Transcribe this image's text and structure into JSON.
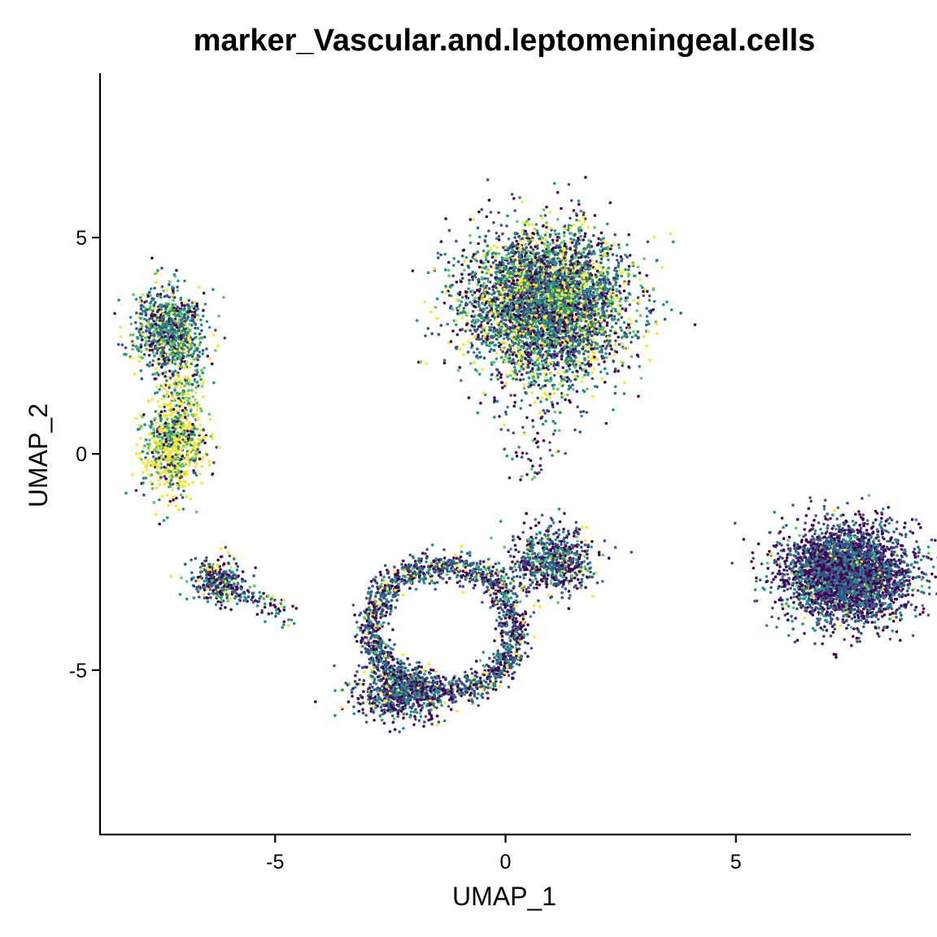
{
  "chart_data": {
    "type": "scatter",
    "title": "marker_Vascular.and.leptomeningeal.cells",
    "xlabel": "UMAP_1",
    "ylabel": "UMAP_2",
    "xlim": [
      -8.8,
      8.8
    ],
    "ylim": [
      -8.8,
      8.8
    ],
    "x_ticks": [
      -5,
      0,
      5
    ],
    "y_ticks": [
      -5,
      0,
      5
    ],
    "grid": false,
    "legend": "none",
    "colormap": [
      "#440154",
      "#3b528b",
      "#21918c",
      "#5ec962",
      "#fde725"
    ],
    "clusters": [
      {
        "name": "top-left-upper",
        "x": -7.3,
        "y": 2.85,
        "sx": 0.38,
        "sy": 0.48,
        "n": 900,
        "color_weights": [
          0.18,
          0.25,
          0.27,
          0.15,
          0.15
        ]
      },
      {
        "name": "top-left-lower",
        "x": -7.2,
        "y": 0.2,
        "sx": 0.35,
        "sy": 0.6,
        "n": 700,
        "color_weights": [
          0.1,
          0.1,
          0.15,
          0.2,
          0.45
        ]
      },
      {
        "name": "left-bridge",
        "x": -7.0,
        "y": 1.4,
        "sx": 0.25,
        "sy": 0.5,
        "n": 120,
        "color_weights": [
          0.1,
          0.1,
          0.15,
          0.2,
          0.45
        ]
      },
      {
        "name": "left-small",
        "x": -6.3,
        "y": -2.95,
        "sx": 0.3,
        "sy": 0.25,
        "n": 280,
        "color_weights": [
          0.35,
          0.35,
          0.15,
          0.05,
          0.1
        ]
      },
      {
        "name": "top-center",
        "x": 0.9,
        "y": 3.45,
        "sx": 0.85,
        "sy": 0.85,
        "n": 4500,
        "color_weights": [
          0.2,
          0.25,
          0.25,
          0.12,
          0.18
        ]
      },
      {
        "name": "center-knot",
        "x": 1.0,
        "y": -2.45,
        "sx": 0.45,
        "sy": 0.38,
        "n": 650,
        "color_weights": [
          0.32,
          0.33,
          0.22,
          0.08,
          0.05
        ]
      },
      {
        "name": "lower-left-blob",
        "x": -2.3,
        "y": -5.5,
        "sx": 0.5,
        "sy": 0.3,
        "n": 700,
        "color_weights": [
          0.35,
          0.35,
          0.2,
          0.05,
          0.05
        ]
      },
      {
        "name": "right",
        "x": 7.4,
        "y": -2.75,
        "sx": 0.7,
        "sy": 0.55,
        "n": 3300,
        "color_weights": [
          0.38,
          0.38,
          0.18,
          0.04,
          0.02
        ]
      }
    ]
  }
}
